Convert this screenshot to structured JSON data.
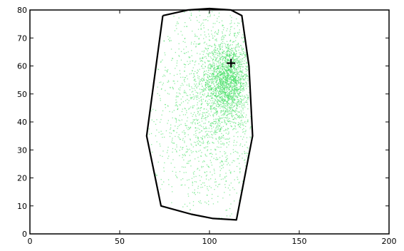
{
  "chart_data": {
    "type": "scatter",
    "title": "",
    "xlabel": "",
    "ylabel": "",
    "xlim": [
      0,
      200
    ],
    "ylim": [
      0,
      80
    ],
    "xticks": [
      0,
      50,
      100,
      150,
      200
    ],
    "yticks": [
      0,
      10,
      20,
      30,
      40,
      50,
      60,
      70,
      80
    ],
    "grid": false,
    "legend": "none",
    "point_color": "#33dd55",
    "boundary_color": "#000000",
    "scatter": {
      "clusters": [
        {
          "cx": 110,
          "cy": 55,
          "sx": 6,
          "sy": 7,
          "n": 1700
        },
        {
          "cx": 103,
          "cy": 48,
          "sx": 14,
          "sy": 18,
          "n": 1000
        },
        {
          "cx": 97,
          "cy": 40,
          "sx": 22,
          "sy": 22,
          "n": 600
        }
      ]
    },
    "boundary": [
      [
        74,
        78
      ],
      [
        88,
        80
      ],
      [
        100,
        80.5
      ],
      [
        112,
        80
      ],
      [
        118,
        78
      ],
      [
        122,
        60
      ],
      [
        124,
        35
      ],
      [
        115,
        5
      ],
      [
        102,
        5.5
      ],
      [
        90,
        7
      ],
      [
        73,
        10
      ],
      [
        65,
        35
      ],
      [
        74,
        78
      ]
    ],
    "marker": {
      "shape": "plus",
      "x": 112,
      "y": 61
    }
  }
}
